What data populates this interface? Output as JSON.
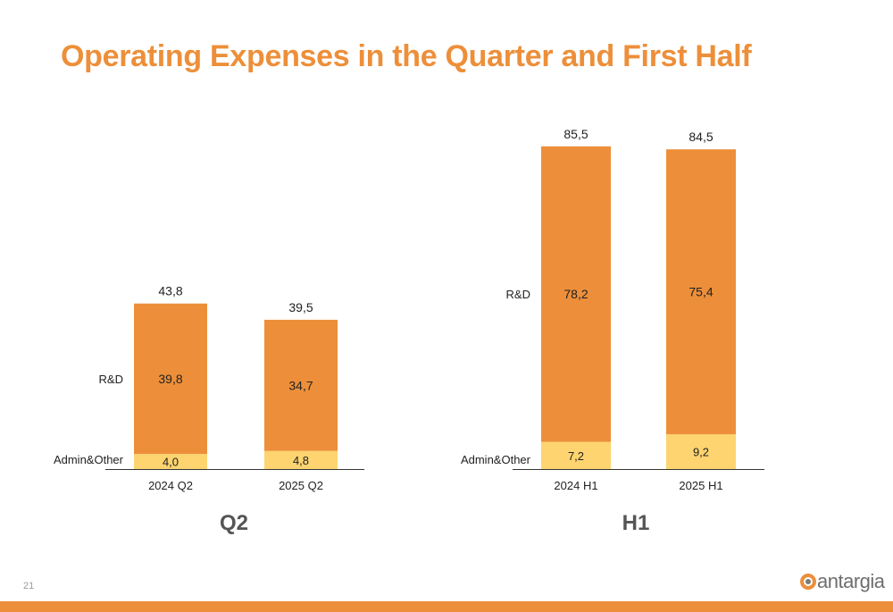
{
  "slide": {
    "title": "Operating Expenses in the Quarter and First Half",
    "page_number": "21",
    "logo_text": "antargia"
  },
  "colors": {
    "accent": "#ed8f3a",
    "rd": "#ed8f3a",
    "admin": "#fdd46f",
    "axis": "#333333",
    "text": "#222222"
  },
  "chart_data": [
    {
      "type": "bar",
      "stacked": true,
      "title": "Q2",
      "categories": [
        "2024 Q2",
        "2025 Q2"
      ],
      "series": [
        {
          "name": "Admin&Other",
          "values": [
            "4,0",
            "4,8"
          ],
          "num": [
            4.0,
            4.8
          ]
        },
        {
          "name": "R&D",
          "values": [
            "39,8",
            "34,7"
          ],
          "num": [
            39.8,
            34.7
          ]
        }
      ],
      "totals": [
        "43,8",
        "39,5"
      ],
      "totals_num": [
        43.8,
        39.5
      ],
      "ylim": [
        0,
        90
      ],
      "grid": false,
      "legend": "left"
    },
    {
      "type": "bar",
      "stacked": true,
      "title": "H1",
      "categories": [
        "2024 H1",
        "2025 H1"
      ],
      "series": [
        {
          "name": "Admin&Other",
          "values": [
            "7,2",
            "9,2"
          ],
          "num": [
            7.2,
            9.2
          ]
        },
        {
          "name": "R&D",
          "values": [
            "78,2",
            "75,4"
          ],
          "num": [
            78.2,
            75.4
          ]
        }
      ],
      "totals": [
        "85,5",
        "84,5"
      ],
      "totals_num": [
        85.5,
        84.5
      ],
      "ylim": [
        0,
        90
      ],
      "grid": false,
      "legend": "left"
    }
  ]
}
